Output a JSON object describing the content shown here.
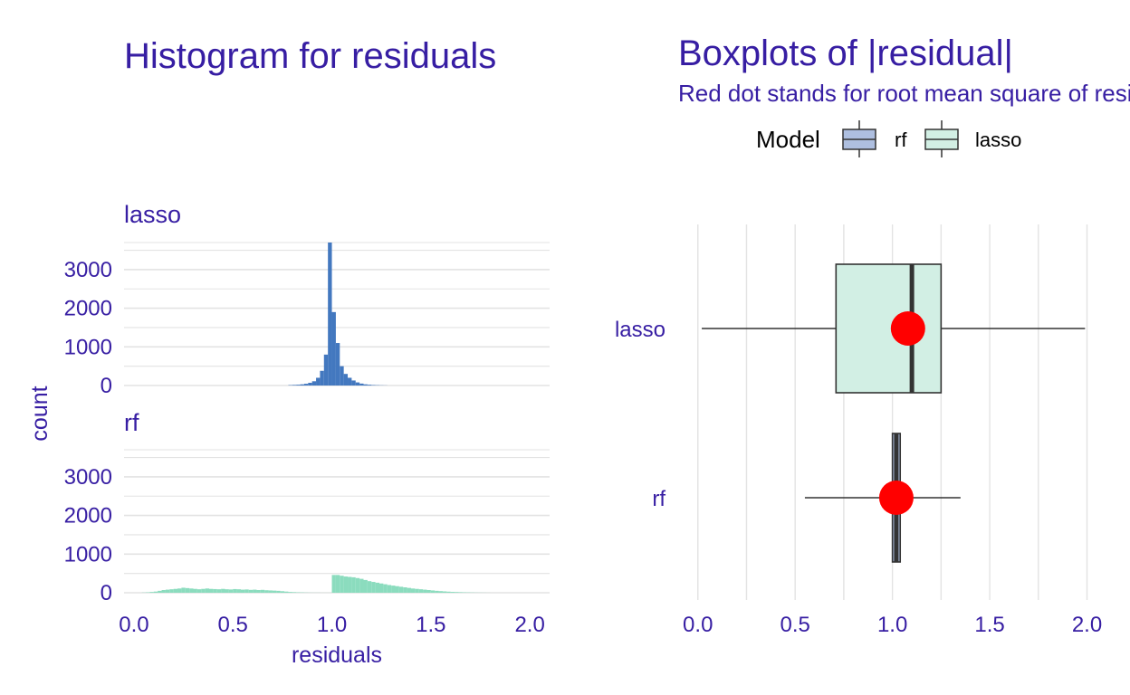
{
  "colors": {
    "text": "#371ea3",
    "grid": "#e3e3e3",
    "rf": "#4378bf",
    "lasso": "#8bdcbe",
    "rf_fill": "#aebfe0",
    "lasso_fill": "#d2efe4",
    "dot": "#ff0000",
    "box_line": "#333333"
  },
  "chart_data": [
    {
      "type": "bar",
      "title": "Histogram for residuals",
      "xlabel": "residuals",
      "ylabel": "count",
      "xlim": [
        -0.05,
        2.1
      ],
      "ylim": [
        0,
        3700
      ],
      "xticks": [
        "0.0",
        "0.5",
        "1.0",
        "1.5",
        "2.0"
      ],
      "yticks": [
        "0",
        "1000",
        "2000",
        "3000"
      ],
      "bin_width": 0.02,
      "facets": [
        {
          "name": "lasso",
          "color_key": "lasso",
          "bins": [
            [
              0.79,
              10
            ],
            [
              0.81,
              15
            ],
            [
              0.83,
              20
            ],
            [
              0.85,
              30
            ],
            [
              0.87,
              45
            ],
            [
              0.89,
              70
            ],
            [
              0.91,
              110
            ],
            [
              0.93,
              200
            ],
            [
              0.95,
              380
            ],
            [
              0.97,
              800
            ],
            [
              0.99,
              3700
            ],
            [
              1.01,
              1900
            ],
            [
              1.03,
              1100
            ],
            [
              1.05,
              500
            ],
            [
              1.07,
              300
            ],
            [
              1.09,
              200
            ],
            [
              1.11,
              130
            ],
            [
              1.13,
              80
            ],
            [
              1.15,
              50
            ],
            [
              1.17,
              30
            ],
            [
              1.19,
              20
            ],
            [
              1.21,
              12
            ],
            [
              1.23,
              8
            ],
            [
              1.25,
              5
            ],
            [
              1.27,
              3
            ]
          ]
        },
        {
          "name": "rf",
          "color_key": "rf_hist",
          "bins": [
            [
              0.05,
              5
            ],
            [
              0.07,
              10
            ],
            [
              0.09,
              20
            ],
            [
              0.11,
              30
            ],
            [
              0.13,
              50
            ],
            [
              0.15,
              70
            ],
            [
              0.17,
              80
            ],
            [
              0.19,
              90
            ],
            [
              0.21,
              100
            ],
            [
              0.23,
              110
            ],
            [
              0.25,
              130
            ],
            [
              0.27,
              120
            ],
            [
              0.29,
              110
            ],
            [
              0.31,
              100
            ],
            [
              0.33,
              90
            ],
            [
              0.35,
              100
            ],
            [
              0.37,
              110
            ],
            [
              0.39,
              100
            ],
            [
              0.41,
              95
            ],
            [
              0.43,
              90
            ],
            [
              0.45,
              100
            ],
            [
              0.47,
              90
            ],
            [
              0.49,
              85
            ],
            [
              0.51,
              95
            ],
            [
              0.53,
              90
            ],
            [
              0.55,
              80
            ],
            [
              0.57,
              85
            ],
            [
              0.59,
              75
            ],
            [
              0.61,
              80
            ],
            [
              0.63,
              70
            ],
            [
              0.65,
              75
            ],
            [
              0.67,
              65
            ],
            [
              0.69,
              60
            ],
            [
              0.71,
              55
            ],
            [
              0.73,
              50
            ],
            [
              0.75,
              40
            ],
            [
              0.77,
              30
            ],
            [
              0.79,
              20
            ],
            [
              0.81,
              15
            ],
            [
              0.83,
              10
            ],
            [
              0.85,
              8
            ],
            [
              0.87,
              5
            ],
            [
              0.89,
              3
            ],
            [
              0.91,
              2
            ],
            [
              0.93,
              2
            ],
            [
              0.95,
              1
            ],
            [
              0.97,
              1
            ],
            [
              0.99,
              1
            ],
            [
              1.01,
              460
            ],
            [
              1.03,
              460
            ],
            [
              1.05,
              440
            ],
            [
              1.07,
              420
            ],
            [
              1.09,
              410
            ],
            [
              1.11,
              400
            ],
            [
              1.13,
              380
            ],
            [
              1.15,
              360
            ],
            [
              1.17,
              330
            ],
            [
              1.19,
              300
            ],
            [
              1.21,
              280
            ],
            [
              1.23,
              260
            ],
            [
              1.25,
              240
            ],
            [
              1.27,
              220
            ],
            [
              1.29,
              200
            ],
            [
              1.31,
              185
            ],
            [
              1.33,
              170
            ],
            [
              1.35,
              155
            ],
            [
              1.37,
              140
            ],
            [
              1.39,
              125
            ],
            [
              1.41,
              110
            ],
            [
              1.43,
              100
            ],
            [
              1.45,
              90
            ],
            [
              1.47,
              80
            ],
            [
              1.49,
              70
            ],
            [
              1.51,
              60
            ],
            [
              1.53,
              50
            ],
            [
              1.55,
              42
            ],
            [
              1.57,
              35
            ],
            [
              1.59,
              28
            ],
            [
              1.61,
              22
            ],
            [
              1.63,
              18
            ],
            [
              1.65,
              14
            ],
            [
              1.67,
              10
            ],
            [
              1.69,
              8
            ],
            [
              1.71,
              6
            ],
            [
              1.73,
              4
            ],
            [
              1.75,
              3
            ],
            [
              1.77,
              2
            ],
            [
              1.79,
              1
            ]
          ]
        }
      ]
    },
    {
      "type": "box",
      "title": "Boxplots of |residual|",
      "subtitle": "Red dot stands for root mean square of residuals",
      "legend": {
        "title": "Model",
        "placement": "top",
        "entries": [
          "rf",
          "lasso"
        ]
      },
      "xlim": [
        -0.05,
        2.1
      ],
      "xticks": [
        "0.0",
        "0.5",
        "1.0",
        "1.5",
        "2.0"
      ],
      "boxes": [
        {
          "name": "lasso",
          "min": 0.02,
          "q1": 0.71,
          "median": 1.1,
          "q3": 1.25,
          "max": 1.99,
          "rms": 1.08
        },
        {
          "name": "rf",
          "min": 0.55,
          "q1": 1.0,
          "median": 1.02,
          "q3": 1.04,
          "max": 1.35,
          "rms": 1.02
        }
      ]
    }
  ]
}
